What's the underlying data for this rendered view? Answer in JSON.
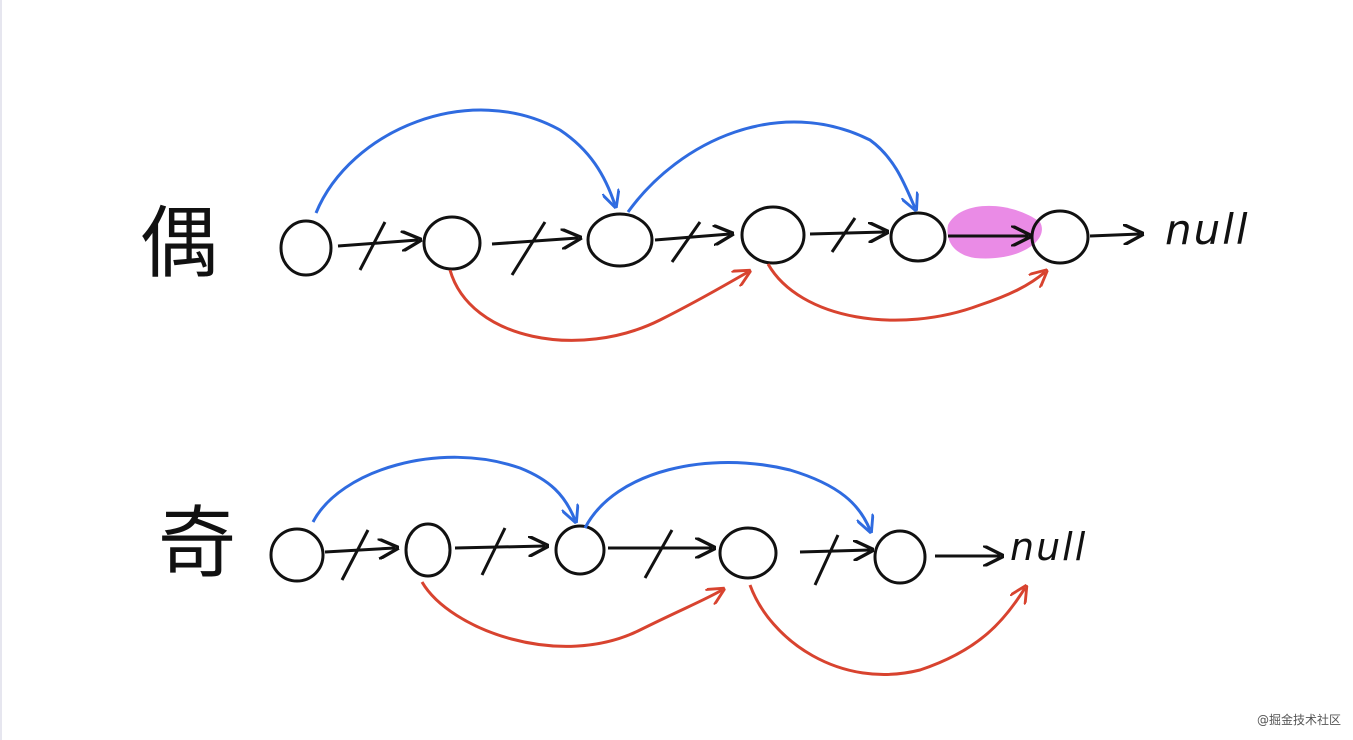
{
  "rows": {
    "even": {
      "label": "偶",
      "terminal": "null",
      "node_count": 6,
      "highlight_link": "5->6"
    },
    "odd": {
      "label": "奇",
      "terminal": "null",
      "node_count": 5
    }
  },
  "watermark": "@掘金技术社区",
  "colors": {
    "ink": "#111111",
    "blue_arrow": "#2f6be0",
    "red_arrow": "#d8432f",
    "highlight": "#ea8be6"
  }
}
